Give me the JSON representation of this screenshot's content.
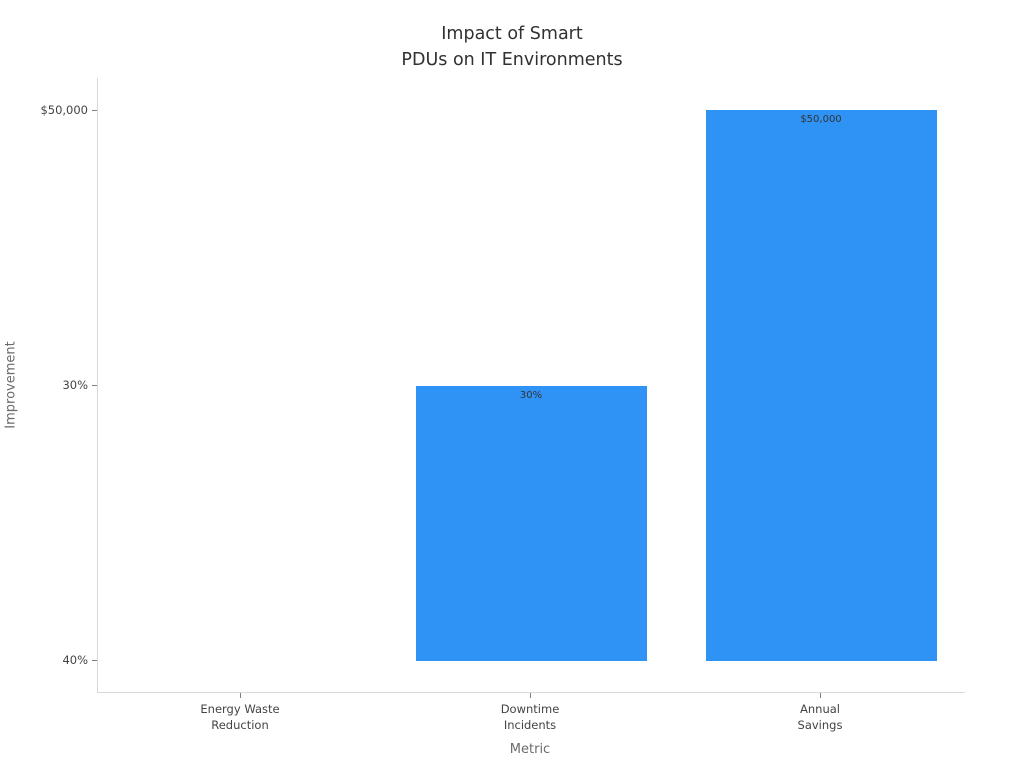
{
  "chart_data": {
    "type": "bar",
    "title": "Impact of Smart PDUs on IT Environments",
    "title_lines": [
      "Impact of Smart",
      "PDUs on IT Environments"
    ],
    "xlabel": "Metric",
    "ylabel": "Improvement",
    "categories": [
      "Energy Waste Reduction",
      "Downtime Incidents",
      "Annual Savings"
    ],
    "category_display_lines": [
      [
        "Energy Waste",
        "Reduction"
      ],
      [
        "Downtime",
        "Incidents"
      ],
      [
        "Annual",
        "Savings"
      ]
    ],
    "values": [
      "40%",
      "30%",
      "$50,000"
    ],
    "y_axis_type": "category",
    "y_categories_bottom_to_top": [
      "40%",
      "30%",
      "$50,000"
    ],
    "visible_bar_value_labels": [
      "30%",
      "$50,000"
    ],
    "legend": "none",
    "grid": "off",
    "colors": {
      "bar": "#2f93f5",
      "title_text": "#313131",
      "tick_text": "#444444",
      "axis_title_text": "#6b6b6b",
      "axis_line": "#d9d9d9",
      "background": "#ffffff"
    }
  }
}
